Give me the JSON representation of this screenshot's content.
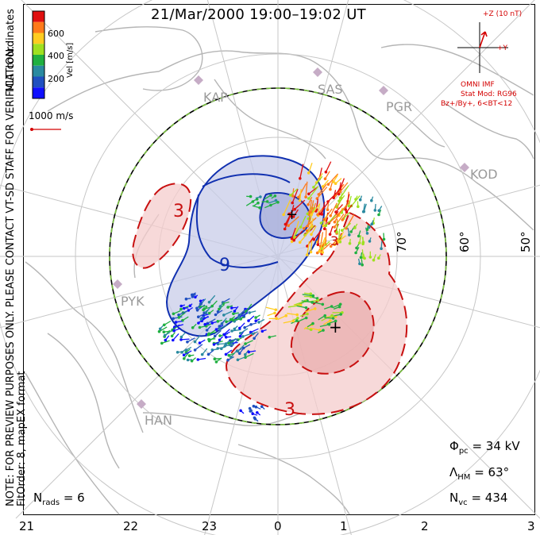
{
  "title": "21/Mar/2000 19:00–19:02 UT",
  "side_notes": {
    "coords": "MLT coordinates",
    "preview": "NOTE: FOR PREVIEW PURPOSES ONLY. PLEASE CONTACT VT-SD STAFF FOR VERIFICATION.",
    "fit": "FitOrder: 8, mapEX format"
  },
  "colorbar": {
    "label": "Vel [m/s]",
    "ticks": [
      "600",
      "400",
      "200"
    ],
    "colors": [
      "#e01010",
      "#ff7a1a",
      "#ffcc20",
      "#9fe020",
      "#20b040",
      "#2a8aa0",
      "#2050c0",
      "#1010ff"
    ]
  },
  "ref_vector": {
    "label": "1000 m/s",
    "color": "#d40000"
  },
  "imf": {
    "z_label": "+Z (10 nT)",
    "y_label": "+Y",
    "source": "OMNI IMF",
    "model": "Stat Mod: RG96",
    "condition": "Bz+/By+, 6<BT<12",
    "color": "#d40000"
  },
  "stations": [
    "KAP",
    "SAS",
    "PGR",
    "KOD",
    "PYK",
    "HAN"
  ],
  "latitude_labels": [
    "70°",
    "60°",
    "50°"
  ],
  "mlt_labels": [
    "21",
    "22",
    "23",
    "0",
    "1",
    "2",
    "3"
  ],
  "contour_labels": [
    "3",
    "9",
    "3",
    "3"
  ],
  "extrema_markers": [
    "+",
    "+"
  ],
  "stats": {
    "phi_pc_sym": "Φ",
    "phi_pc_sub": "pc",
    "phi_pc_value": "= 34 kV",
    "lambda_hm_sym": "Λ",
    "lambda_hm_sub": "HM",
    "lambda_hm_value": "= 63°",
    "nvc_sym": "N",
    "nvc_sub": "vc",
    "nvc_value": "= 434",
    "nrads_sym": "N",
    "nrads_sub": "rads",
    "nrads_value": "= 6"
  },
  "convection_colors": {
    "negative_cell": "#c8cce8",
    "negative_line": "#1030b0",
    "positive_cell": "#f4cccc",
    "positive_line": "#c81010",
    "boundary_dash": "#7ac040"
  }
}
